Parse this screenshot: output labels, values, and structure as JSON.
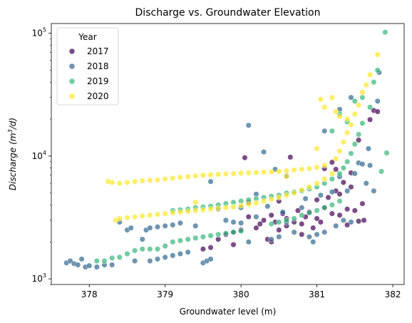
{
  "chart_data": {
    "type": "scatter",
    "title": "Discharge vs. Groundwater Elevation",
    "xlabel": "Groundwater level (m)",
    "ylabel_main": "Discharge",
    "ylabel_unit_base": "(m",
    "ylabel_unit_sup": "3",
    "ylabel_unit_rest": "/d)",
    "xlim": [
      377.5,
      382.15
    ],
    "ylim": [
      900,
      120000
    ],
    "yscale": "log",
    "x_ticks": [
      378,
      379,
      380,
      381,
      382
    ],
    "x_tick_labels": [
      "378",
      "379",
      "380",
      "381",
      "382"
    ],
    "y_ticks": [
      1000,
      10000,
      100000
    ],
    "y_tick_labels": [
      {
        "base": "10",
        "exp": "3"
      },
      {
        "base": "10",
        "exp": "4"
      },
      {
        "base": "10",
        "exp": "5"
      }
    ],
    "grid": false,
    "legend": {
      "title": "Year",
      "position": "top-left",
      "entries": [
        "2017",
        "2018",
        "2019",
        "2020"
      ]
    },
    "colors": {
      "2017": "#440154",
      "2018": "#31688e",
      "2019": "#35b779",
      "2020": "#fde725"
    },
    "series": [
      {
        "name": "2017",
        "points": [
          [
            379.5,
            1750
          ],
          [
            379.6,
            1800
          ],
          [
            379.7,
            2100
          ],
          [
            379.8,
            2300
          ],
          [
            379.9,
            2400
          ],
          [
            380.0,
            2500
          ],
          [
            380.05,
            9700
          ],
          [
            380.1,
            3200
          ],
          [
            380.1,
            4200
          ],
          [
            380.2,
            2600
          ],
          [
            380.25,
            2800
          ],
          [
            380.3,
            3000
          ],
          [
            380.35,
            2100
          ],
          [
            380.4,
            3300
          ],
          [
            380.45,
            2900
          ],
          [
            380.5,
            2500
          ],
          [
            380.5,
            4300
          ],
          [
            380.55,
            3400
          ],
          [
            380.6,
            3100
          ],
          [
            380.6,
            2700
          ],
          [
            380.65,
            9800
          ],
          [
            380.7,
            2900
          ],
          [
            380.75,
            3600
          ],
          [
            380.8,
            2800
          ],
          [
            380.85,
            3200
          ],
          [
            380.9,
            3500
          ],
          [
            380.95,
            2600
          ],
          [
            381.0,
            3100
          ],
          [
            381.0,
            4400
          ],
          [
            381.05,
            2900
          ],
          [
            381.1,
            3800
          ],
          [
            381.1,
            7900
          ],
          [
            381.15,
            4600
          ],
          [
            381.2,
            3400
          ],
          [
            381.2,
            8900
          ],
          [
            381.25,
            5200
          ],
          [
            381.3,
            3300
          ],
          [
            381.35,
            6100
          ],
          [
            381.4,
            3700
          ],
          [
            381.45,
            7300
          ],
          [
            381.5,
            3600
          ],
          [
            381.55,
            13500
          ],
          [
            381.6,
            4100
          ],
          [
            381.7,
            19800
          ],
          [
            381.75,
            23500
          ],
          [
            381.8,
            23000
          ],
          [
            381.62,
            3000
          ],
          [
            381.55,
            2950
          ],
          [
            381.4,
            2750
          ],
          [
            381.3,
            4900
          ],
          [
            379.9,
            1900
          ],
          [
            380.4,
            2000
          ],
          [
            380.8,
            2300
          ],
          [
            381.25,
            7800
          ],
          [
            381.45,
            5600
          ]
        ]
      },
      {
        "name": "2018",
        "points": [
          [
            377.7,
            1350
          ],
          [
            377.75,
            1400
          ],
          [
            377.8,
            1330
          ],
          [
            377.85,
            1300
          ],
          [
            377.9,
            1450
          ],
          [
            377.95,
            1250
          ],
          [
            378.0,
            1280
          ],
          [
            378.1,
            1250
          ],
          [
            378.2,
            1300
          ],
          [
            378.3,
            1300
          ],
          [
            378.4,
            2900
          ],
          [
            378.5,
            2500
          ],
          [
            378.55,
            2600
          ],
          [
            378.6,
            1400
          ],
          [
            378.7,
            2100
          ],
          [
            378.75,
            2500
          ],
          [
            378.8,
            2600
          ],
          [
            378.9,
            2650
          ],
          [
            379.0,
            2700
          ],
          [
            379.1,
            2750
          ],
          [
            379.2,
            2850
          ],
          [
            379.3,
            1650
          ],
          [
            379.4,
            2700
          ],
          [
            379.5,
            1350
          ],
          [
            379.55,
            1400
          ],
          [
            379.6,
            6200
          ],
          [
            379.6,
            1450
          ],
          [
            379.7,
            3700
          ],
          [
            379.8,
            3000
          ],
          [
            379.9,
            2900
          ],
          [
            380.0,
            2850
          ],
          [
            380.1,
            2000
          ],
          [
            380.1,
            17800
          ],
          [
            380.2,
            3200
          ],
          [
            380.3,
            10800
          ],
          [
            380.35,
            3900
          ],
          [
            380.4,
            2100
          ],
          [
            380.45,
            7800
          ],
          [
            380.5,
            2200
          ],
          [
            380.55,
            3500
          ],
          [
            380.6,
            2900
          ],
          [
            380.7,
            2400
          ],
          [
            380.8,
            3800
          ],
          [
            380.85,
            4500
          ],
          [
            380.9,
            2200
          ],
          [
            380.95,
            2000
          ],
          [
            381.0,
            2300
          ],
          [
            381.05,
            4800
          ],
          [
            381.1,
            2400
          ],
          [
            381.1,
            16000
          ],
          [
            381.2,
            5100
          ],
          [
            381.25,
            2700
          ],
          [
            381.3,
            6800
          ],
          [
            381.35,
            3000
          ],
          [
            381.4,
            5200
          ],
          [
            381.45,
            2900
          ],
          [
            381.5,
            7200
          ],
          [
            381.55,
            8800
          ],
          [
            381.6,
            8600
          ],
          [
            381.65,
            6000
          ],
          [
            381.7,
            8400
          ],
          [
            381.75,
            5200
          ],
          [
            381.82,
            48000
          ],
          [
            381.8,
            28000
          ],
          [
            381.68,
            11500
          ],
          [
            379.2,
            1600
          ],
          [
            379.1,
            1550
          ],
          [
            379.0,
            1500
          ],
          [
            378.9,
            1450
          ],
          [
            378.8,
            1400
          ],
          [
            380.2,
            4900
          ],
          [
            380.6,
            6900
          ],
          [
            381.3,
            24000
          ],
          [
            381.45,
            30000
          ],
          [
            380.0,
            3800
          ]
        ]
      },
      {
        "name": "2019",
        "points": [
          [
            378.1,
            1400
          ],
          [
            378.2,
            1400
          ],
          [
            378.3,
            1480
          ],
          [
            378.4,
            1500
          ],
          [
            378.5,
            1600
          ],
          [
            378.6,
            1700
          ],
          [
            378.7,
            1750
          ],
          [
            378.8,
            1750
          ],
          [
            378.9,
            1750
          ],
          [
            379.0,
            1850
          ],
          [
            379.1,
            2000
          ],
          [
            379.2,
            2050
          ],
          [
            379.3,
            2100
          ],
          [
            379.4,
            2150
          ],
          [
            379.5,
            2200
          ],
          [
            379.6,
            2250
          ],
          [
            379.7,
            2300
          ],
          [
            379.8,
            2350
          ],
          [
            379.9,
            2400
          ],
          [
            380.0,
            2450
          ],
          [
            379.1,
            3600
          ],
          [
            379.2,
            3650
          ],
          [
            379.3,
            3700
          ],
          [
            379.4,
            3800
          ],
          [
            379.5,
            3850
          ],
          [
            379.6,
            3900
          ],
          [
            379.7,
            4000
          ],
          [
            379.8,
            4100
          ],
          [
            379.9,
            4200
          ],
          [
            380.0,
            4300
          ],
          [
            380.1,
            4400
          ],
          [
            380.2,
            4500
          ],
          [
            380.3,
            4600
          ],
          [
            380.4,
            4700
          ],
          [
            380.5,
            4800
          ],
          [
            380.6,
            5000
          ],
          [
            380.7,
            5100
          ],
          [
            380.8,
            5200
          ],
          [
            380.9,
            5400
          ],
          [
            381.0,
            5600
          ],
          [
            380.4,
            2800
          ],
          [
            380.5,
            2900
          ],
          [
            380.6,
            3000
          ],
          [
            380.7,
            3100
          ],
          [
            380.8,
            3300
          ],
          [
            380.9,
            3450
          ],
          [
            381.0,
            3600
          ],
          [
            381.1,
            3800
          ],
          [
            381.2,
            4000
          ],
          [
            381.3,
            4300
          ],
          [
            381.1,
            6000
          ],
          [
            381.2,
            6500
          ],
          [
            381.3,
            7200
          ],
          [
            381.35,
            8000
          ],
          [
            381.4,
            9000
          ],
          [
            381.45,
            10500
          ],
          [
            381.5,
            12500
          ],
          [
            381.55,
            15000
          ],
          [
            381.6,
            18500
          ],
          [
            381.7,
            25000
          ],
          [
            381.75,
            40000
          ],
          [
            381.8,
            50000
          ],
          [
            381.9,
            102000
          ],
          [
            381.92,
            10600
          ],
          [
            381.85,
            7500
          ],
          [
            381.3,
            22000
          ],
          [
            381.4,
            19000
          ],
          [
            381.5,
            28000
          ],
          [
            381.2,
            16000
          ],
          [
            381.6,
            30000
          ]
        ]
      },
      {
        "name": "2020",
        "points": [
          [
            378.25,
            6200
          ],
          [
            378.3,
            6100
          ],
          [
            378.4,
            6000
          ],
          [
            378.5,
            6100
          ],
          [
            378.6,
            6200
          ],
          [
            378.7,
            6300
          ],
          [
            378.8,
            6350
          ],
          [
            378.9,
            6400
          ],
          [
            379.0,
            6500
          ],
          [
            379.1,
            6600
          ],
          [
            379.2,
            6700
          ],
          [
            379.3,
            6800
          ],
          [
            379.4,
            6900
          ],
          [
            379.5,
            7000
          ],
          [
            379.6,
            7050
          ],
          [
            379.7,
            7100
          ],
          [
            379.8,
            7150
          ],
          [
            379.9,
            7200
          ],
          [
            380.0,
            7250
          ],
          [
            380.1,
            7300
          ],
          [
            380.2,
            7350
          ],
          [
            380.3,
            7400
          ],
          [
            380.4,
            7450
          ],
          [
            380.5,
            7500
          ],
          [
            380.6,
            7600
          ],
          [
            380.7,
            7700
          ],
          [
            380.8,
            7800
          ],
          [
            380.9,
            7900
          ],
          [
            381.0,
            8100
          ],
          [
            381.1,
            8400
          ],
          [
            378.35,
            3000
          ],
          [
            378.4,
            3100
          ],
          [
            378.5,
            3150
          ],
          [
            378.6,
            3200
          ],
          [
            378.7,
            3250
          ],
          [
            378.8,
            3300
          ],
          [
            378.9,
            3350
          ],
          [
            379.0,
            3400
          ],
          [
            379.1,
            3450
          ],
          [
            379.2,
            3500
          ],
          [
            379.3,
            3550
          ],
          [
            379.4,
            3600
          ],
          [
            379.5,
            3650
          ],
          [
            379.6,
            3700
          ],
          [
            379.7,
            3750
          ],
          [
            379.8,
            3800
          ],
          [
            379.9,
            3850
          ],
          [
            380.0,
            3950
          ],
          [
            380.1,
            4050
          ],
          [
            380.2,
            4150
          ],
          [
            380.3,
            4300
          ],
          [
            380.4,
            4450
          ],
          [
            380.5,
            4600
          ],
          [
            380.6,
            4800
          ],
          [
            380.7,
            5000
          ],
          [
            380.8,
            5300
          ],
          [
            380.9,
            5600
          ],
          [
            381.0,
            6000
          ],
          [
            381.1,
            6500
          ],
          [
            381.2,
            7200
          ],
          [
            381.25,
            9500
          ],
          [
            381.3,
            11000
          ],
          [
            381.35,
            13000
          ],
          [
            381.4,
            15500
          ],
          [
            381.45,
            18000
          ],
          [
            381.5,
            22000
          ],
          [
            381.55,
            26000
          ],
          [
            381.6,
            33000
          ],
          [
            381.65,
            38000
          ],
          [
            381.7,
            46000
          ],
          [
            381.8,
            67000
          ],
          [
            381.05,
            29000
          ],
          [
            381.2,
            30000
          ],
          [
            381.1,
            25000
          ],
          [
            381.25,
            23000
          ],
          [
            381.3,
            21000
          ],
          [
            381.4,
            20000
          ],
          [
            379.4,
            4200
          ],
          [
            380.6,
            6800
          ],
          [
            381.0,
            11500
          ]
        ]
      }
    ]
  }
}
